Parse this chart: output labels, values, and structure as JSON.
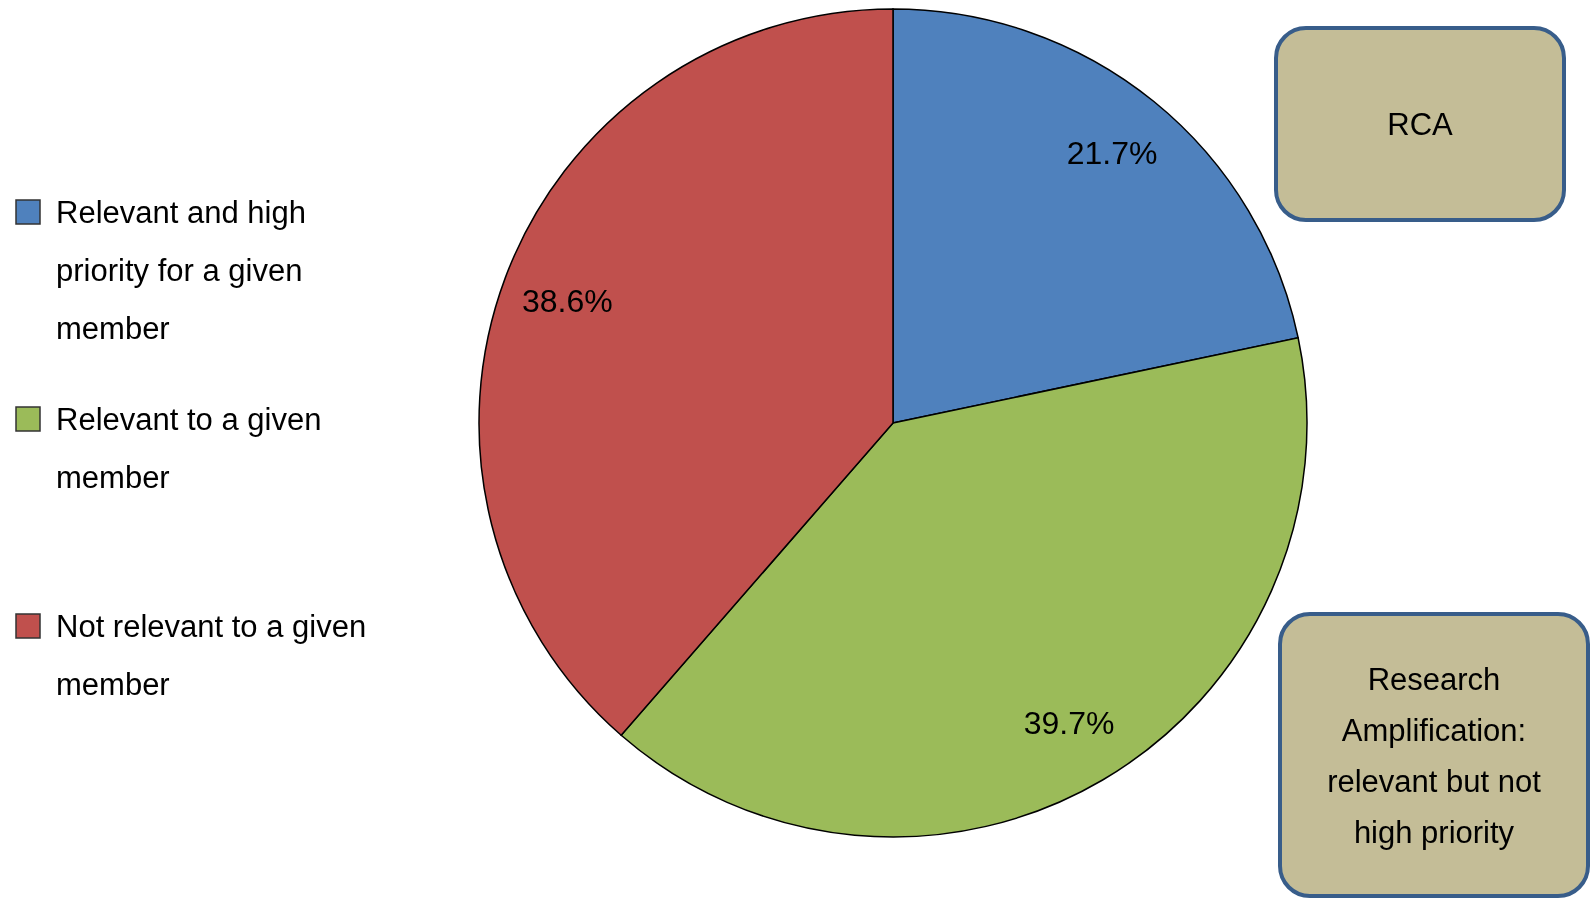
{
  "chart_data": {
    "type": "pie",
    "categories": [
      "Relevant and high priority for a given member",
      "Relevant to a given member",
      "Not relevant to a given member"
    ],
    "values": [
      21.7,
      39.7,
      38.6
    ],
    "colors": [
      "#4f81bd",
      "#9bbb59",
      "#c0504d"
    ],
    "value_labels": [
      "21.7%",
      "39.7%",
      "38.6%"
    ],
    "legend": "left",
    "annotations": [
      "RCA",
      "Research Amplification: relevant but not high priority"
    ]
  }
}
